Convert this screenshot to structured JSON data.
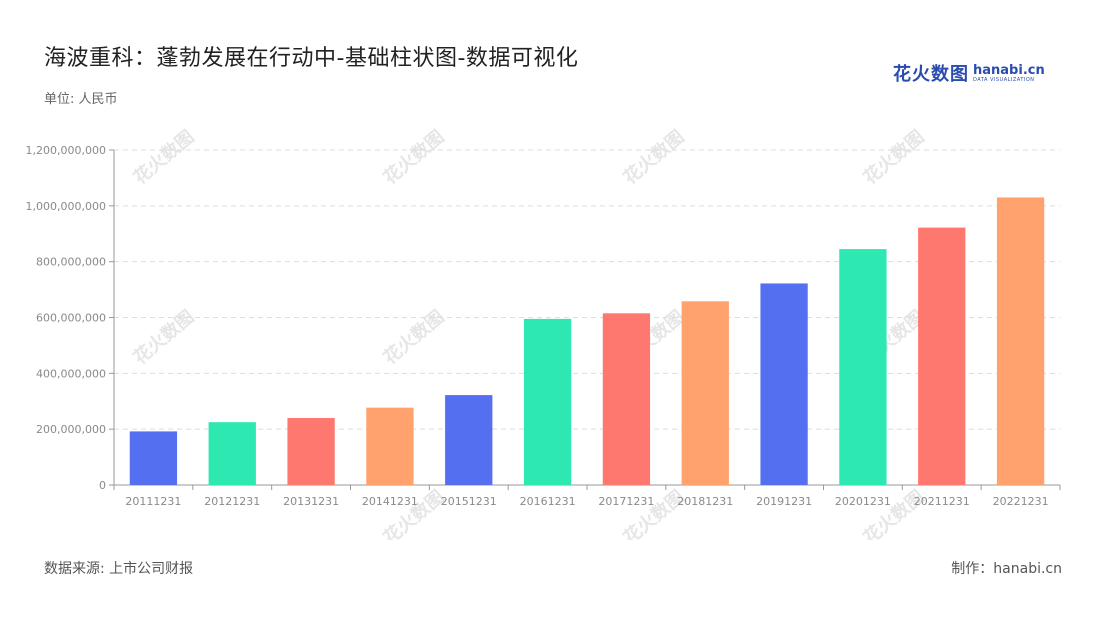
{
  "title": "海波重科：蓬勃发展在行动中-基础柱状图-数据可视化",
  "unit_label": "单位: 人民币",
  "logo": {
    "cn": "花火数图",
    "en": "hanabi.cn",
    "sub": "DATA VISUALIZATION"
  },
  "footer": {
    "source": "数据来源: 上市公司财报",
    "credit": "制作：hanabi.cn"
  },
  "colors": {
    "blue": "#5470f0",
    "green": "#2de8b0",
    "red": "#ff7870",
    "orange": "#ffa26e",
    "grid": "#dddddd",
    "axis": "#999999"
  },
  "chart_data": {
    "type": "bar",
    "categories": [
      "20111231",
      "20121231",
      "20131231",
      "20141231",
      "20151231",
      "20161231",
      "20171231",
      "20181231",
      "20191231",
      "20201231",
      "20211231",
      "20221231"
    ],
    "values": [
      192000000,
      225000000,
      240000000,
      277000000,
      322000000,
      595000000,
      615000000,
      658000000,
      722000000,
      845000000,
      922000000,
      1030000000
    ],
    "bar_colors": [
      "#5470f0",
      "#2de8b0",
      "#ff7870",
      "#ffa26e",
      "#5470f0",
      "#2de8b0",
      "#ff7870",
      "#ffa26e",
      "#5470f0",
      "#2de8b0",
      "#ff7870",
      "#ffa26e"
    ],
    "yticks": [
      "0",
      "200,000,000",
      "400,000,000",
      "600,000,000",
      "800,000,000",
      "1,000,000,000",
      "1,200,000,000"
    ],
    "ylim": [
      0,
      1200000000
    ],
    "grid": true,
    "legend": "none"
  }
}
